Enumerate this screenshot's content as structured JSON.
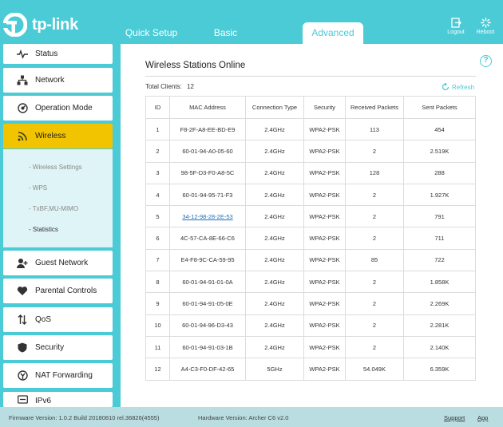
{
  "header": {
    "logo_text": "tp-link",
    "tabs": [
      {
        "label": "Quick Setup"
      },
      {
        "label": "Basic"
      },
      {
        "label": "Advanced"
      }
    ],
    "logout_label": "Logout",
    "reboot_label": "Reboot"
  },
  "sidebar": {
    "items": [
      {
        "label": "Status",
        "icon": "pulse-icon"
      },
      {
        "label": "Network",
        "icon": "network-icon"
      },
      {
        "label": "Operation Mode",
        "icon": "operation-mode-icon"
      },
      {
        "label": "Wireless",
        "icon": "wifi-icon"
      },
      {
        "label": "Guest Network",
        "icon": "guest-icon"
      },
      {
        "label": "Parental Controls",
        "icon": "heart-icon"
      },
      {
        "label": "QoS",
        "icon": "qos-arrows-icon"
      },
      {
        "label": "Security",
        "icon": "shield-icon"
      },
      {
        "label": "NAT Forwarding",
        "icon": "nat-icon"
      },
      {
        "label": "IPv6",
        "icon": "ipv6-icon"
      }
    ],
    "wireless_sub": [
      {
        "label": "- Wireless Settings"
      },
      {
        "label": "- WPS"
      },
      {
        "label": "- TxBF,MU-MIMO"
      },
      {
        "label": "- Statistics"
      }
    ]
  },
  "main": {
    "title": "Wireless Stations Online",
    "total_label": "Total Clients:",
    "total_value": "12",
    "refresh_label": "Refresh",
    "columns": [
      "ID",
      "MAC Address",
      "Connection Type",
      "Security",
      "Received Packets",
      "Sent Packets"
    ],
    "rows": [
      [
        "1",
        "F8-2F-A8-EE-BD-E9",
        "2.4GHz",
        "WPA2-PSK",
        "113",
        "454"
      ],
      [
        "2",
        "60-01-94-A0-05-60",
        "2.4GHz",
        "WPA2-PSK",
        "2",
        "2.519K"
      ],
      [
        "3",
        "98-5F-D3-F0-A8-5C",
        "2.4GHz",
        "WPA2-PSK",
        "128",
        "288"
      ],
      [
        "4",
        "60-01-94-95-71-F3",
        "2.4GHz",
        "WPA2-PSK",
        "2",
        "1.927K"
      ],
      [
        "5",
        "34-12-98-28-2E-53",
        "2.4GHz",
        "WPA2-PSK",
        "2",
        "791"
      ],
      [
        "6",
        "4C-57-CA-8E-66-C6",
        "2.4GHz",
        "WPA2-PSK",
        "2",
        "711"
      ],
      [
        "7",
        "E4-F8-9C-CA-59-95",
        "2.4GHz",
        "WPA2-PSK",
        "85",
        "722"
      ],
      [
        "8",
        "60-01-94-91-01-0A",
        "2.4GHz",
        "WPA2-PSK",
        "2",
        "1.858K"
      ],
      [
        "9",
        "60-01-94-91-05-0E",
        "2.4GHz",
        "WPA2-PSK",
        "2",
        "2.269K"
      ],
      [
        "10",
        "60-01-94-96-D3-43",
        "2.4GHz",
        "WPA2-PSK",
        "2",
        "2.281K"
      ],
      [
        "11",
        "60-01-94-91-03-1B",
        "2.4GHz",
        "WPA2-PSK",
        "2",
        "2.140K"
      ],
      [
        "12",
        "A4-C3-F0-DF-42-65",
        "5GHz",
        "WPA2-PSK",
        "54.049K",
        "6.359K"
      ]
    ]
  },
  "footer": {
    "firmware": "Firmware Version: 1.0.2 Build 20180810 rel.36826(4555)",
    "hardware": "Hardware Version: Archer C6 v2.0",
    "support": "Support",
    "app": "App"
  },
  "colors": {
    "accent": "#4acbd6",
    "active": "#f2c400",
    "link": "#1f6fb5"
  }
}
